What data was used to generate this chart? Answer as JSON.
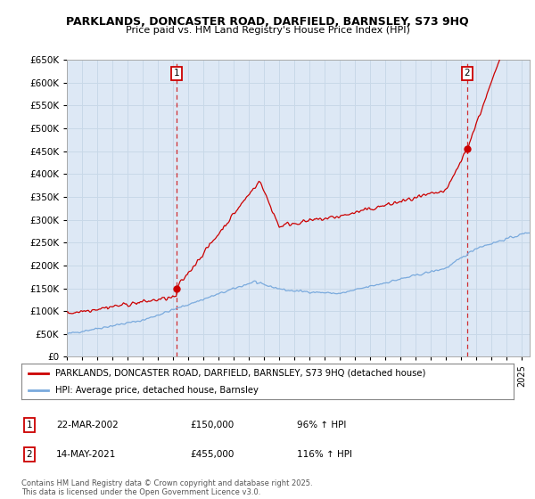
{
  "title": "PARKLANDS, DONCASTER ROAD, DARFIELD, BARNSLEY, S73 9HQ",
  "subtitle": "Price paid vs. HM Land Registry's House Price Index (HPI)",
  "ylabel_ticks": [
    "£0",
    "£50K",
    "£100K",
    "£150K",
    "£200K",
    "£250K",
    "£300K",
    "£350K",
    "£400K",
    "£450K",
    "£500K",
    "£550K",
    "£600K",
    "£650K"
  ],
  "ytick_values": [
    0,
    50000,
    100000,
    150000,
    200000,
    250000,
    300000,
    350000,
    400000,
    450000,
    500000,
    550000,
    600000,
    650000
  ],
  "sale1_date": 2002.22,
  "sale1_price": 150000,
  "sale1_label": "1",
  "sale2_date": 2021.37,
  "sale2_price": 455000,
  "sale2_label": "2",
  "line1_color": "#cc0000",
  "line2_color": "#7aaadd",
  "dashed_color": "#cc0000",
  "annotation_box_color": "#cc0000",
  "plot_bg_color": "#dde8f5",
  "legend_line1": "PARKLANDS, DONCASTER ROAD, DARFIELD, BARNSLEY, S73 9HQ (detached house)",
  "legend_line2": "HPI: Average price, detached house, Barnsley",
  "table_row1": [
    "1",
    "22-MAR-2002",
    "£150,000",
    "96% ↑ HPI"
  ],
  "table_row2": [
    "2",
    "14-MAY-2021",
    "£455,000",
    "116% ↑ HPI"
  ],
  "footnote": "Contains HM Land Registry data © Crown copyright and database right 2025.\nThis data is licensed under the Open Government Licence v3.0.",
  "xmin": 1995.0,
  "xmax": 2025.5,
  "ymin": 0,
  "ymax": 650000,
  "background_color": "#ffffff",
  "grid_color": "#c8d8e8"
}
